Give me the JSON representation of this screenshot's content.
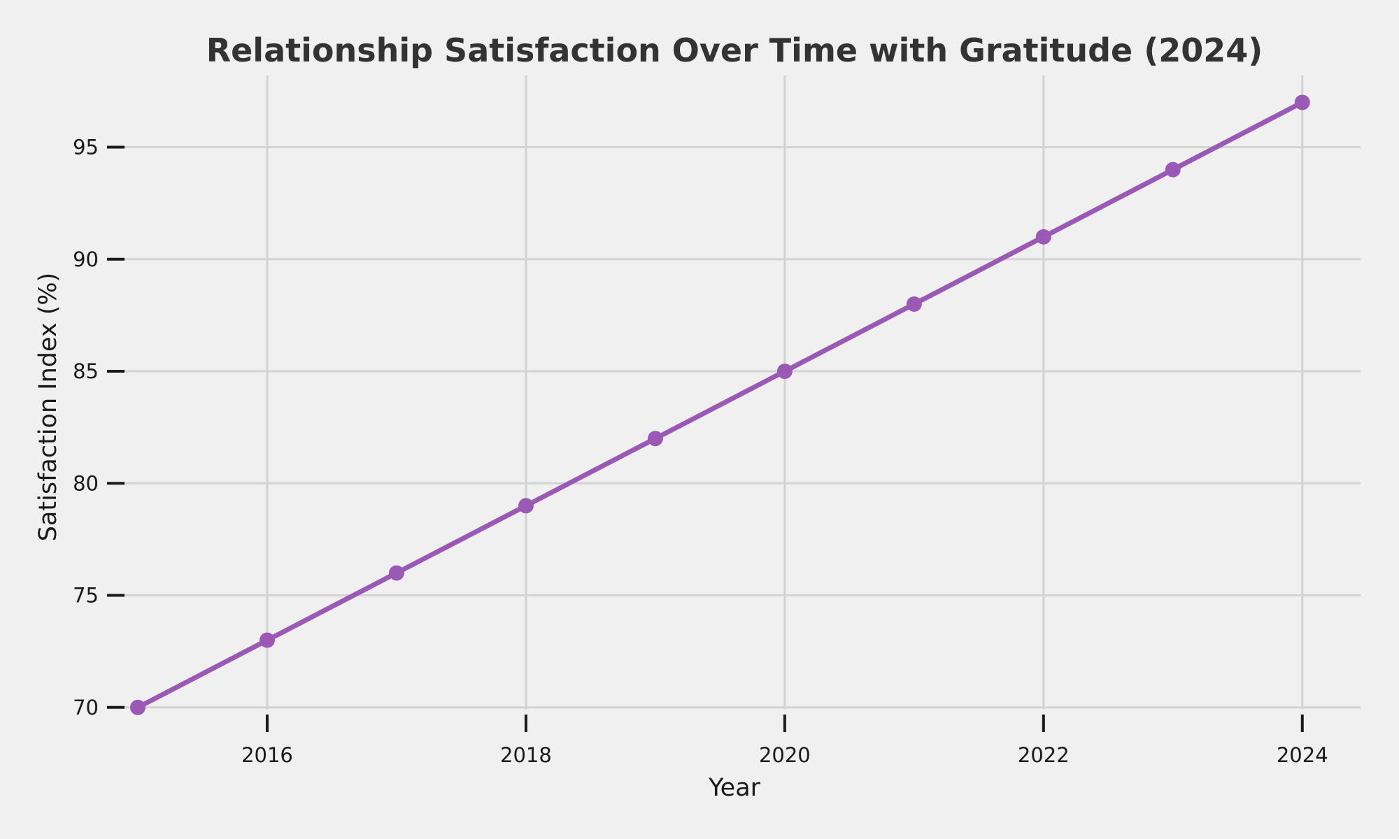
{
  "chart_data": {
    "type": "line",
    "title": "Relationship Satisfaction Over Time with Gratitude (2024)",
    "xlabel": "Year",
    "ylabel": "Satisfaction Index (%)",
    "x": [
      2015,
      2016,
      2017,
      2018,
      2019,
      2020,
      2021,
      2022,
      2023,
      2024
    ],
    "series": [
      {
        "values": [
          70,
          73,
          76,
          79,
          82,
          85,
          88,
          91,
          94,
          97
        ],
        "color": "#9b59b6",
        "marker": "circle"
      }
    ],
    "xlim": [
      2014.8,
      2024.45
    ],
    "ylim": [
      69.9,
      98.2
    ],
    "xticks": [
      2016,
      2018,
      2020,
      2022,
      2024
    ],
    "yticks": [
      70,
      75,
      80,
      85,
      90,
      95
    ],
    "grid": true,
    "legend": "none",
    "style": {
      "background": "#f0f0f0",
      "grid_color": "#d3d3d3",
      "tick_color": "#1a1a1a"
    }
  }
}
